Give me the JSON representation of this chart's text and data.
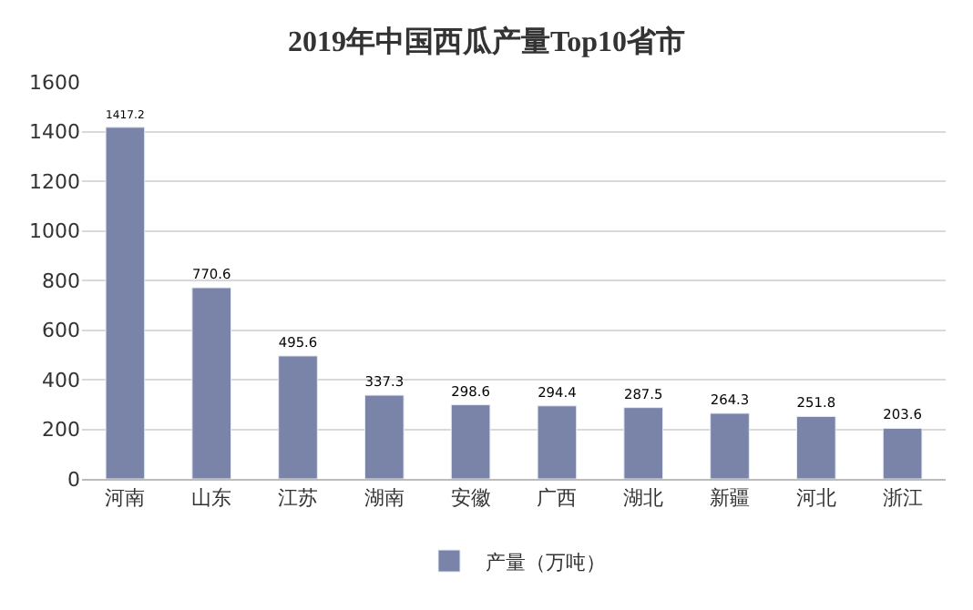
{
  "chart_data": {
    "type": "bar",
    "title": "2019年中国西瓜产量Top10省市",
    "categories": [
      "河南",
      "山东",
      "江苏",
      "湖南",
      "安徽",
      "广西",
      "湖北",
      "新疆",
      "河北",
      "浙江"
    ],
    "series": [
      {
        "name": "产量（万吨）",
        "color": "#7a83a8",
        "values": [
          1417.2,
          770.6,
          495.6,
          337.3,
          298.6,
          294.4,
          287.5,
          264.3,
          251.8,
          203.6
        ]
      }
    ],
    "ylim": [
      0,
      1600
    ],
    "yticks": [
      0,
      200,
      400,
      600,
      800,
      1000,
      1200,
      1400,
      1600
    ],
    "grid": "y",
    "legend": "bottom",
    "data_labels": true
  }
}
